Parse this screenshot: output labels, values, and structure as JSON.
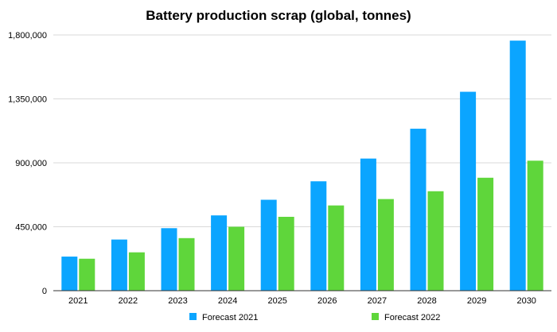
{
  "chart_data": {
    "type": "bar",
    "title": "Battery production scrap (global, tonnes)",
    "xlabel": "",
    "ylabel": "",
    "categories": [
      "2021",
      "2022",
      "2023",
      "2024",
      "2025",
      "2026",
      "2027",
      "2028",
      "2029",
      "2030"
    ],
    "series": [
      {
        "name": "Forecast 2021",
        "color": "#0ba5ff",
        "values": [
          240000,
          360000,
          440000,
          530000,
          640000,
          770000,
          930000,
          1140000,
          1400000,
          1760000
        ]
      },
      {
        "name": "Forecast 2022",
        "color": "#5fd63b",
        "values": [
          225000,
          270000,
          370000,
          450000,
          520000,
          600000,
          645000,
          700000,
          795000,
          915000
        ]
      }
    ],
    "ylim": [
      0,
      1800000
    ],
    "yticks": [
      0,
      450000,
      900000,
      1350000,
      1800000
    ],
    "ytick_labels": [
      "0",
      "450,000",
      "900,000",
      "1,350,000",
      "1,800,000"
    ],
    "grid": true,
    "legend_position": "bottom"
  }
}
